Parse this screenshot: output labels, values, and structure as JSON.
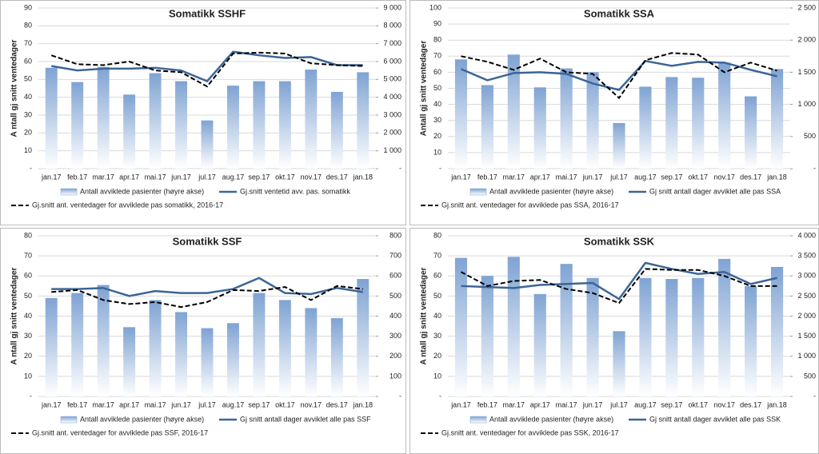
{
  "chart_data": [
    {
      "type": "bar-line",
      "title": "Somatikk SSHF",
      "ylabel": "A ntall gj snitt ventedager",
      "categories": [
        "jan.17",
        "feb.17",
        "mar.17",
        "apr.17",
        "mai.17",
        "jun.17",
        "jul.17",
        "aug.17",
        "sep.17",
        "okt.17",
        "nov.17",
        "des.17",
        "jan.18"
      ],
      "ylim": [
        0,
        90
      ],
      "yticks": [
        {
          "value": 0,
          "label": "-"
        },
        10,
        20,
        30,
        40,
        50,
        60,
        70,
        80,
        90
      ],
      "y2lim": [
        0,
        9000
      ],
      "y2ticks": [
        {
          "value": 0,
          "label": "-"
        },
        {
          "value": 1000,
          "label": "1 000"
        },
        {
          "value": 2000,
          "label": "2 000"
        },
        {
          "value": 3000,
          "label": "3 000"
        },
        {
          "value": 4000,
          "label": "4 000"
        },
        {
          "value": 5000,
          "label": "5 000"
        },
        {
          "value": 6000,
          "label": "6 000"
        },
        {
          "value": 7000,
          "label": "7 000"
        },
        {
          "value": 8000,
          "label": "8 000"
        },
        {
          "value": 9000,
          "label": "9 000"
        }
      ],
      "grid": true,
      "series": [
        {
          "name": "Antall avviklede pasienter (høyre akse)",
          "type": "bar",
          "axis": "y2",
          "color": "#7fa3d3",
          "values": [
            5650,
            4850,
            5700,
            4150,
            5350,
            4900,
            2700,
            4650,
            4900,
            4900,
            5550,
            4300,
            5400
          ]
        },
        {
          "name": "Gj.snitt ventetid avv. pas. somatikk",
          "type": "line",
          "color": "#3c6595",
          "values": [
            57.5,
            55,
            56,
            56,
            56.5,
            55,
            49,
            65.5,
            63.5,
            62,
            62.5,
            58,
            58
          ]
        },
        {
          "name": "Gj.snitt ant. ventedager for avviklede pas somatikk, 2016-17",
          "type": "line",
          "dashed": true,
          "color": "#000000",
          "values": [
            63.5,
            58.5,
            58,
            60,
            55,
            54,
            46,
            64.5,
            65,
            64.5,
            59,
            58,
            57.5
          ]
        }
      ]
    },
    {
      "type": "bar-line",
      "title": "Somatikk SSA",
      "ylabel": "Antall gj snitt ventedager",
      "categories": [
        "jan.17",
        "feb.17",
        "mar.17",
        "apr.17",
        "mai.17",
        "jun.17",
        "jul.17",
        "aug.17",
        "sep.17",
        "okt.17",
        "nov.17",
        "des.17",
        "jan.18"
      ],
      "ylim": [
        0,
        100
      ],
      "yticks": [
        {
          "value": 0,
          "label": "-"
        },
        10,
        20,
        30,
        40,
        50,
        60,
        70,
        80,
        90,
        100
      ],
      "y2lim": [
        0,
        2500
      ],
      "y2ticks": [
        {
          "value": 0,
          "label": "-"
        },
        500,
        {
          "value": 1000,
          "label": "1 000"
        },
        {
          "value": 1500,
          "label": "1 500"
        },
        {
          "value": 2000,
          "label": "2 000"
        },
        {
          "value": 2500,
          "label": "2 500"
        }
      ],
      "grid": true,
      "series": [
        {
          "name": "Antall avviklede pasienter (høyre akse)",
          "type": "bar",
          "axis": "y2",
          "color": "#7fa3d3",
          "values": [
            1700,
            1300,
            1775,
            1265,
            1560,
            1500,
            710,
            1275,
            1425,
            1415,
            1650,
            1125,
            1550
          ]
        },
        {
          "name": "Gj snitt antall dager avviklet alle pas SSA",
          "type": "line",
          "color": "#3c6595",
          "values": [
            62,
            55,
            59.5,
            60,
            59,
            53,
            49,
            67,
            64,
            66.5,
            66,
            61.5,
            57.5
          ]
        },
        {
          "name": "Gj.snitt ant. ventedager for avviklede pas SSA, 2016-17",
          "type": "line",
          "dashed": true,
          "color": "#000000",
          "values": [
            70,
            66.5,
            61.5,
            68.5,
            60,
            59,
            44,
            67.5,
            72,
            71,
            60,
            66,
            61
          ]
        }
      ]
    },
    {
      "type": "bar-line",
      "title": "Somatikk SSF",
      "ylabel": "A ntall gj snitt ventedager",
      "categories": [
        "jan.17",
        "feb.17",
        "mar.17",
        "apr.17",
        "mai.17",
        "jun.17",
        "jul.17",
        "aug.17",
        "sep.17",
        "okt.17",
        "nov.17",
        "des.17",
        "jan.18"
      ],
      "ylim": [
        0,
        80
      ],
      "yticks": [
        {
          "value": 0,
          "label": "-"
        },
        10,
        20,
        30,
        40,
        50,
        60,
        70,
        80
      ],
      "y2lim": [
        0,
        800
      ],
      "y2ticks": [
        {
          "value": 0,
          "label": "-"
        },
        100,
        200,
        300,
        400,
        500,
        600,
        700,
        800
      ],
      "grid": true,
      "series": [
        {
          "name": "Antall avviklede pasienter (høyre akse)",
          "type": "bar",
          "axis": "y2",
          "color": "#7fa3d3",
          "values": [
            490,
            515,
            555,
            345,
            480,
            420,
            340,
            365,
            515,
            480,
            440,
            390,
            585
          ]
        },
        {
          "name": "Gj snitt antall dager avviklet alle pas SSF",
          "type": "line",
          "color": "#3c6595",
          "values": [
            53.5,
            53.5,
            54,
            50,
            52.5,
            51.5,
            51.5,
            53.5,
            59,
            51.5,
            51,
            54,
            52
          ]
        },
        {
          "name": "Gj.snitt ant. ventedager for avviklede pas SSF, 2016-17",
          "type": "line",
          "dashed": true,
          "color": "#000000",
          "values": [
            52,
            53,
            48,
            46,
            47,
            44.5,
            47,
            53,
            52.5,
            54.5,
            48,
            55,
            53.5
          ]
        }
      ]
    },
    {
      "type": "bar-line",
      "title": "Somatikk SSK",
      "ylabel": "A ntall gj snitt ventedager",
      "categories": [
        "jan.17",
        "feb.17",
        "mar.17",
        "apr.17",
        "mai.17",
        "jun.17",
        "jul.17",
        "aug.17",
        "sep.17",
        "okt.17",
        "nov.17",
        "des.17",
        "jan.18"
      ],
      "ylim": [
        0,
        80
      ],
      "yticks": [
        {
          "value": 0,
          "label": "-"
        },
        10,
        20,
        30,
        40,
        50,
        60,
        70,
        80
      ],
      "y2lim": [
        0,
        4000
      ],
      "y2ticks": [
        {
          "value": 0,
          "label": "-"
        },
        500,
        {
          "value": 1000,
          "label": "1 000"
        },
        {
          "value": 1500,
          "label": "1 500"
        },
        {
          "value": 2000,
          "label": "2 000"
        },
        {
          "value": 2500,
          "label": "2 500"
        },
        {
          "value": 3000,
          "label": "3 000"
        },
        {
          "value": 3500,
          "label": "3 500"
        },
        {
          "value": 4000,
          "label": "4 000"
        }
      ],
      "grid": true,
      "series": [
        {
          "name": "Antall avviklede pasienter (høyre akse)",
          "type": "bar",
          "axis": "y2",
          "color": "#7fa3d3",
          "values": [
            3450,
            3000,
            3475,
            2550,
            3300,
            2950,
            1625,
            2950,
            2925,
            2950,
            3425,
            2750,
            3225
          ]
        },
        {
          "name": "Gj snitt antall dager avviklet alle pas SSK",
          "type": "line",
          "color": "#3c6595",
          "values": [
            55,
            54.5,
            54,
            55.5,
            56,
            56.5,
            48.5,
            66.5,
            63.5,
            61,
            62,
            56,
            59
          ]
        },
        {
          "name": "Gj.snitt ant. ventedager for avviklede pas SSK, 2016-17",
          "type": "line",
          "dashed": true,
          "color": "#000000",
          "values": [
            62,
            55,
            57.5,
            58,
            53.5,
            51.5,
            46.5,
            63.5,
            63,
            63,
            60,
            55,
            55
          ]
        }
      ]
    }
  ]
}
